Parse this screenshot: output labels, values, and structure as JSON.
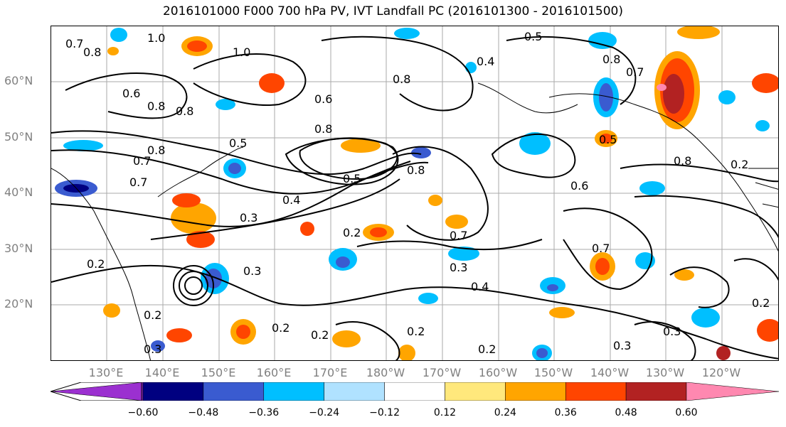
{
  "title": "2016101000 F000 700 hPa PV, IVT Landfall PC (2016101300 - 2016101500)",
  "lat_labels": [
    "60°N",
    "50°N",
    "40°N",
    "30°N",
    "20°N"
  ],
  "lon_labels": [
    "130°E",
    "140°E",
    "150°E",
    "160°E",
    "170°E",
    "180°W",
    "170°W",
    "160°W",
    "150°W",
    "140°W",
    "130°W",
    "120°W"
  ],
  "colorbar": {
    "colors": [
      "#9b30d0",
      "#000080",
      "#3a5bd0",
      "#00bfff",
      "#b0e2ff",
      "#ffffff",
      "#ffe87c",
      "#ffa500",
      "#ff4500",
      "#b22222",
      "#ff88b0"
    ],
    "tick_labels": [
      "−0.60",
      "−0.48",
      "−0.36",
      "−0.24",
      "−0.12",
      "0.12",
      "0.24",
      "0.36",
      "0.48",
      "0.60"
    ]
  },
  "contour_labels": [
    "0.7",
    "0.8",
    "1.0",
    "0.8",
    "0.6",
    "0.8",
    "1.0",
    "0.5",
    "0.4",
    "0.8",
    "0.7",
    "0.8",
    "0.6",
    "0.8",
    "0.5",
    "0.7",
    "0.8",
    "0.5",
    "0.7",
    "0.3",
    "0.4",
    "0.5",
    "0.2",
    "0.8",
    "0.6",
    "0.7",
    "0.2",
    "0.3",
    "0.2",
    "0.3",
    "0.4",
    "0.2",
    "0.2",
    "0.2",
    "0.3",
    "0.2",
    "0.3",
    "0.7",
    "0.3",
    "0.2",
    "0.2",
    "0.8"
  ]
}
